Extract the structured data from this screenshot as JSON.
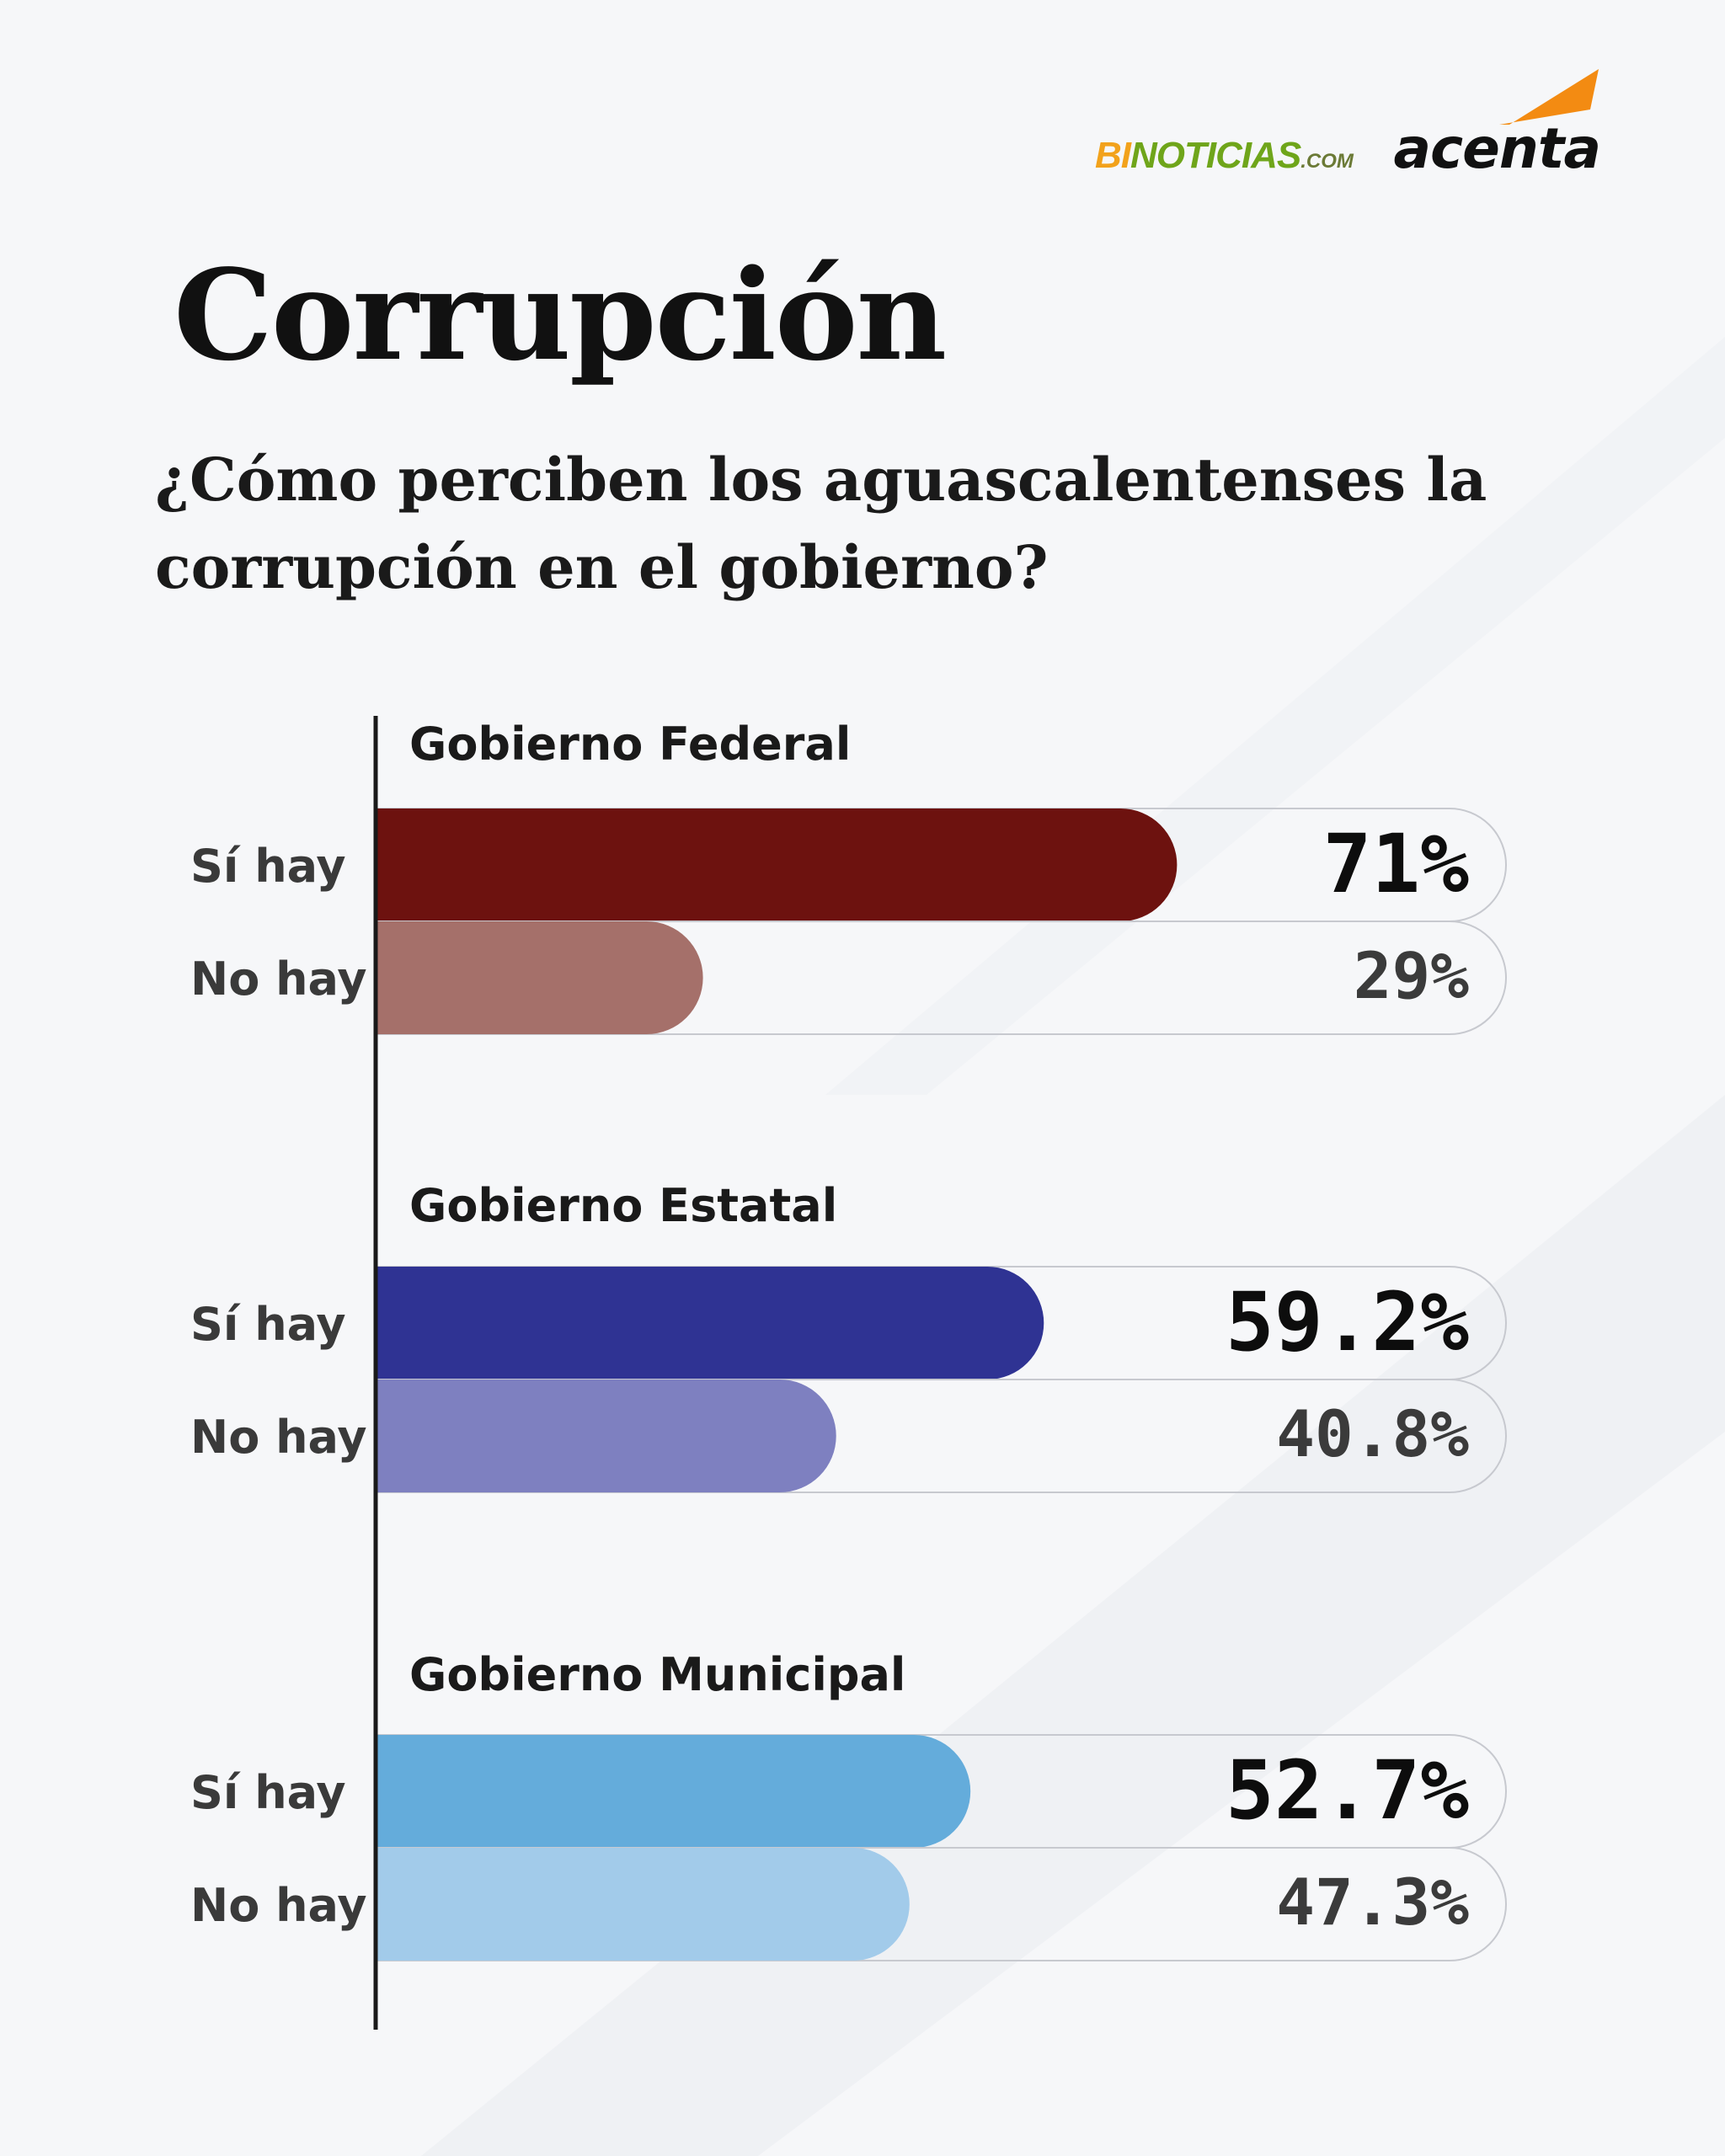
{
  "brand": {
    "binoticias_bi": "BI",
    "binoticias_noticias": "NOTICIAS",
    "binoticias_com": ".COM",
    "acenta": "acenta",
    "colors": {
      "bi": "#f2a21b",
      "noticias": "#6fa51a",
      "swoosh": "#f38b12"
    }
  },
  "title": "Corrupción",
  "subtitle": "¿Cómo perciben los aguascalentenses la corrupción en el gobierno?",
  "chart_data": {
    "type": "bar",
    "orientation": "horizontal",
    "xlim": [
      0,
      100
    ],
    "unit": "%",
    "groups": [
      {
        "name": "Gobierno Federal",
        "bars": [
          {
            "label": "Sí hay",
            "value": 71,
            "display": "71%",
            "color": "#6d120f",
            "emphasis": true
          },
          {
            "label": "No hay",
            "value": 29,
            "display": "29%",
            "color": "#a5706a",
            "emphasis": false
          }
        ]
      },
      {
        "name": "Gobierno Estatal",
        "bars": [
          {
            "label": "Sí hay",
            "value": 59.2,
            "display": "59.2%",
            "color": "#2f3393",
            "emphasis": true
          },
          {
            "label": "No hay",
            "value": 40.8,
            "display": "40.8%",
            "color": "#7e80c0",
            "emphasis": false
          }
        ]
      },
      {
        "name": "Gobierno Municipal",
        "bars": [
          {
            "label": "Sí hay",
            "value": 52.7,
            "display": "52.7%",
            "color": "#64acdb",
            "emphasis": true
          },
          {
            "label": "No hay",
            "value": 47.3,
            "display": "47.3%",
            "color": "#a2cbea",
            "emphasis": false
          }
        ]
      }
    ]
  }
}
